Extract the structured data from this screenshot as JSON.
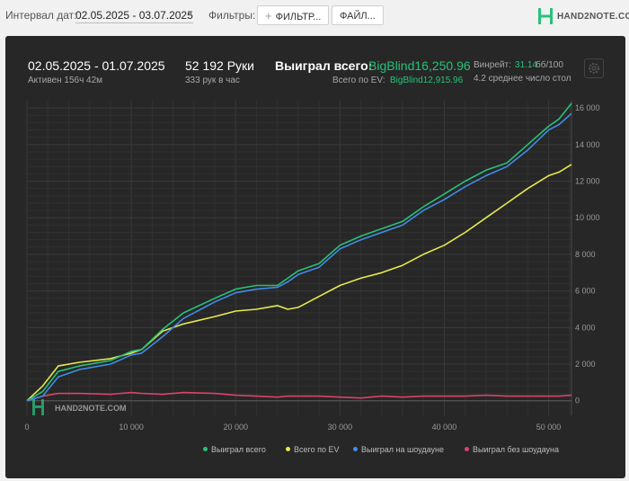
{
  "toolbar": {
    "interval_label": "Интервал дат:",
    "interval_value": "02.05.2025 - 03.07.2025",
    "filters_label": "Фильтры:",
    "filter_button": "ФИЛЬТР...",
    "file_button": "ФАЙЛ..."
  },
  "logo": {
    "text": "HAND2NOTE.COM",
    "watermark": "HAND2NOTE.COM"
  },
  "stats": {
    "period": "02.05.2025 - 01.07.2025",
    "active": "Активен 156ч 42м",
    "hands": "52 192 Руки",
    "hands_per_hour": "333 рук в час",
    "won_total_label": "Выиграл всего:",
    "won_total_value": "BigBlind16,250.96",
    "ev_total_label": "Всего по EV:",
    "ev_total_value": "BigBlind12,915.96",
    "winrate_label": "Винрейт:",
    "winrate_value": "31.14",
    "winrate_unit": "бб/100",
    "avg_text": "4.2 среднее число стол"
  },
  "colors": {
    "won": "#27c27a",
    "ev": "#e7ea4c",
    "showdown": "#3d8ee8",
    "non_showdown": "#d9436b"
  },
  "chart_data": {
    "type": "line",
    "xlim": [
      0,
      52192
    ],
    "ylim": [
      -800,
      16400
    ],
    "x_ticks": [
      0,
      10000,
      20000,
      30000,
      40000,
      50000
    ],
    "x_tick_labels": [
      "0",
      "10 000",
      "20 000",
      "30 000",
      "40 000",
      "50 000"
    ],
    "y_ticks": [
      0,
      2000,
      4000,
      6000,
      8000,
      10000,
      12000,
      14000,
      16000
    ],
    "y_tick_labels": [
      "0",
      "2 000",
      "4 000",
      "6 000",
      "8 000",
      "10 000",
      "12 000",
      "14 000",
      "16 000"
    ],
    "grid": true,
    "legend_position": "bottom-right",
    "series": [
      {
        "name": "Выиграл всего",
        "color": "#27c27a",
        "x": [
          0,
          1500,
          3000,
          5000,
          8000,
          10000,
          11000,
          13000,
          15000,
          18000,
          20000,
          22000,
          24000,
          25000,
          26000,
          28000,
          30000,
          32000,
          34000,
          36000,
          38000,
          40000,
          42000,
          44000,
          46000,
          48000,
          50000,
          51000,
          52192
        ],
        "y": [
          0,
          500,
          1600,
          1900,
          2200,
          2700,
          2800,
          3900,
          4800,
          5600,
          6100,
          6300,
          6300,
          6700,
          7100,
          7500,
          8500,
          9000,
          9400,
          9800,
          10600,
          11300,
          12000,
          12600,
          13000,
          14000,
          15000,
          15400,
          16251
        ]
      },
      {
        "name": "Всего по EV",
        "color": "#e7ea4c",
        "x": [
          0,
          1500,
          3000,
          5000,
          8000,
          10000,
          11000,
          13000,
          15000,
          18000,
          20000,
          22000,
          24000,
          25000,
          26000,
          28000,
          30000,
          32000,
          34000,
          36000,
          38000,
          40000,
          42000,
          44000,
          46000,
          48000,
          50000,
          51000,
          52192
        ],
        "y": [
          0,
          800,
          1900,
          2100,
          2300,
          2600,
          2800,
          3800,
          4200,
          4600,
          4900,
          5000,
          5200,
          5000,
          5100,
          5700,
          6300,
          6700,
          7000,
          7400,
          8000,
          8500,
          9200,
          10000,
          10800,
          11600,
          12300,
          12500,
          12916
        ]
      },
      {
        "name": "Выиграл на шоудауне",
        "color": "#3d8ee8",
        "x": [
          0,
          1500,
          3000,
          5000,
          8000,
          10000,
          11000,
          13000,
          15000,
          18000,
          20000,
          22000,
          24000,
          25000,
          26000,
          28000,
          30000,
          32000,
          34000,
          36000,
          38000,
          40000,
          42000,
          44000,
          46000,
          48000,
          50000,
          51000,
          52192
        ],
        "y": [
          0,
          250,
          1300,
          1700,
          2000,
          2500,
          2600,
          3500,
          4500,
          5400,
          5900,
          6100,
          6200,
          6500,
          6900,
          7300,
          8300,
          8800,
          9200,
          9600,
          10400,
          11000,
          11700,
          12300,
          12800,
          13700,
          14800,
          15100,
          15700
        ]
      },
      {
        "name": "Выиграл без шоудауна",
        "color": "#d9436b",
        "x": [
          0,
          1500,
          3000,
          5000,
          8000,
          10000,
          11000,
          13000,
          15000,
          18000,
          20000,
          22000,
          24000,
          25000,
          26000,
          28000,
          30000,
          32000,
          34000,
          36000,
          38000,
          40000,
          42000,
          44000,
          46000,
          48000,
          50000,
          51000,
          52192
        ],
        "y": [
          0,
          250,
          400,
          400,
          350,
          450,
          400,
          350,
          450,
          400,
          300,
          250,
          200,
          250,
          250,
          250,
          200,
          150,
          250,
          200,
          250,
          250,
          250,
          300,
          250,
          250,
          250,
          250,
          300
        ]
      }
    ]
  }
}
